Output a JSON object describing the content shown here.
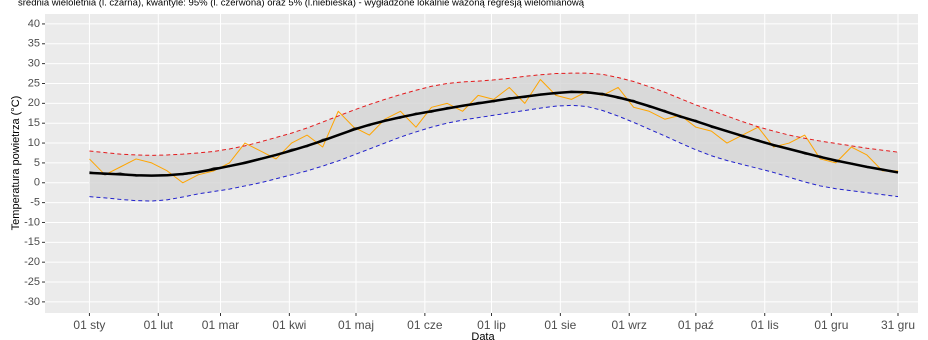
{
  "chart_data": {
    "type": "line",
    "title": "średnia wieloletnia (l. czarna), kwantyle: 95% (l. czerwona) oraz 5% (l.niebieska) - wygładzone lokalnie ważoną regresją wielomianową",
    "xlabel": "Data",
    "ylabel": "Temperatura powietrza (°C)",
    "x": [
      1,
      8,
      15,
      22,
      29,
      36,
      43,
      50,
      57,
      64,
      71,
      78,
      85,
      92,
      99,
      106,
      113,
      120,
      127,
      134,
      141,
      148,
      155,
      162,
      169,
      176,
      183,
      190,
      197,
      204,
      211,
      218,
      225,
      232,
      239,
      246,
      253,
      260,
      267,
      274,
      281,
      288,
      295,
      302,
      309,
      316,
      323,
      330,
      337,
      344,
      351,
      358,
      365
    ],
    "series": [
      {
        "color": "#ffa500",
        "width": 1,
        "values": [
          6,
          2,
          4,
          6,
          5,
          3,
          0,
          2,
          3,
          5,
          10,
          8,
          6,
          10,
          12,
          9,
          18,
          14,
          12,
          16,
          18,
          14,
          19,
          20,
          18,
          22,
          21,
          24,
          20,
          26,
          22,
          21,
          23,
          22,
          24,
          19,
          18,
          16,
          17,
          14,
          13,
          10,
          12,
          14,
          9,
          10,
          12,
          6,
          5,
          9,
          7,
          3,
          3
        ]
      },
      {
        "color": "#333333",
        "width": 0.8,
        "values": [
          2.8,
          2.0,
          2.5,
          1.6,
          1.9,
          2.1,
          2.0,
          2.5,
          3.8,
          4.0,
          5.3,
          6.2,
          6.8,
          8.5,
          9.0,
          11.0,
          11.8,
          13.8,
          14.3,
          15.9,
          16.2,
          17.6,
          17.7,
          19.0,
          19.2,
          20.3,
          20.3,
          21.5,
          21.4,
          22.4,
          22.3,
          23.1,
          22.5,
          22.6,
          21.2,
          20.8,
          19.0,
          18.3,
          16.4,
          15.8,
          13.9,
          13.2,
          11.5,
          10.9,
          9.2,
          8.7,
          7.2,
          6.8,
          5.3,
          5.0,
          3.8,
          3.5,
          2.5
        ]
      },
      {
        "color": "#000000",
        "width": 2.5,
        "values": [
          2.5,
          2.3,
          2.1,
          1.9,
          1.8,
          1.9,
          2.2,
          2.7,
          3.4,
          4.2,
          5.0,
          6.0,
          7.0,
          8.1,
          9.3,
          10.6,
          12.0,
          13.4,
          14.6,
          15.6,
          16.5,
          17.3,
          18.0,
          18.7,
          19.4,
          20.0,
          20.6,
          21.2,
          21.7,
          22.2,
          22.6,
          22.9,
          22.8,
          22.3,
          21.5,
          20.5,
          19.3,
          18.0,
          16.7,
          15.5,
          14.2,
          13.0,
          11.8,
          10.6,
          9.5,
          8.5,
          7.5,
          6.5,
          5.6,
          4.8,
          4.0,
          3.3,
          2.6
        ]
      },
      {
        "color": "#e31a1c",
        "width": 1,
        "dashed": true,
        "values": [
          8.0,
          7.6,
          7.2,
          7.0,
          6.9,
          7.0,
          7.2,
          7.5,
          7.9,
          8.5,
          9.3,
          10.3,
          11.4,
          12.5,
          13.8,
          15.3,
          16.8,
          18.3,
          19.7,
          21.0,
          22.2,
          23.3,
          24.3,
          25.0,
          25.4,
          25.6,
          25.9,
          26.3,
          26.8,
          27.2,
          27.5,
          27.6,
          27.6,
          27.3,
          26.5,
          25.5,
          24.2,
          22.8,
          21.2,
          19.6,
          18.2,
          16.8,
          15.4,
          14.1,
          13.0,
          12.0,
          11.2,
          10.5,
          9.9,
          9.3,
          8.7,
          8.2,
          7.7
        ]
      },
      {
        "color": "#2020cc",
        "width": 1,
        "dashed": true,
        "values": [
          -3.5,
          -3.8,
          -4.2,
          -4.5,
          -4.6,
          -4.3,
          -3.6,
          -2.8,
          -2.2,
          -1.6,
          -0.8,
          0,
          1.0,
          2.0,
          3.0,
          4.2,
          5.5,
          7.0,
          8.5,
          10.0,
          11.5,
          12.8,
          14.0,
          15.0,
          15.8,
          16.4,
          17.0,
          17.6,
          18.2,
          18.8,
          19.3,
          19.5,
          19.2,
          18.2,
          16.8,
          15.2,
          13.5,
          11.8,
          10.0,
          8.3,
          6.8,
          5.6,
          4.6,
          3.6,
          2.6,
          1.4,
          0.2,
          -0.8,
          -1.5,
          -2.0,
          -2.5,
          -3.0,
          -3.5
        ]
      }
    ],
    "ribbon_color": "#d5d5d5",
    "xlim": [
      -19,
      374
    ],
    "ylim": [
      -32.8,
      42.5
    ],
    "xticks": [
      {
        "value": 1,
        "label": "01 sty"
      },
      {
        "value": 32,
        "label": "01 lut"
      },
      {
        "value": 60,
        "label": "01 mar"
      },
      {
        "value": 91,
        "label": "01 kwi"
      },
      {
        "value": 121,
        "label": "01 maj"
      },
      {
        "value": 152,
        "label": "01 cze"
      },
      {
        "value": 182,
        "label": "01 lip"
      },
      {
        "value": 213,
        "label": "01 sie"
      },
      {
        "value": 244,
        "label": "01 wrz"
      },
      {
        "value": 274,
        "label": "01 paź"
      },
      {
        "value": 305,
        "label": "01 lis"
      },
      {
        "value": 335,
        "label": "01 gru"
      },
      {
        "value": 365,
        "label": "31 gru"
      }
    ],
    "yticks": [
      -30,
      -25,
      -20,
      -15,
      -10,
      -5,
      0,
      5,
      10,
      15,
      20,
      25,
      30,
      35,
      40
    ],
    "grid": true
  }
}
